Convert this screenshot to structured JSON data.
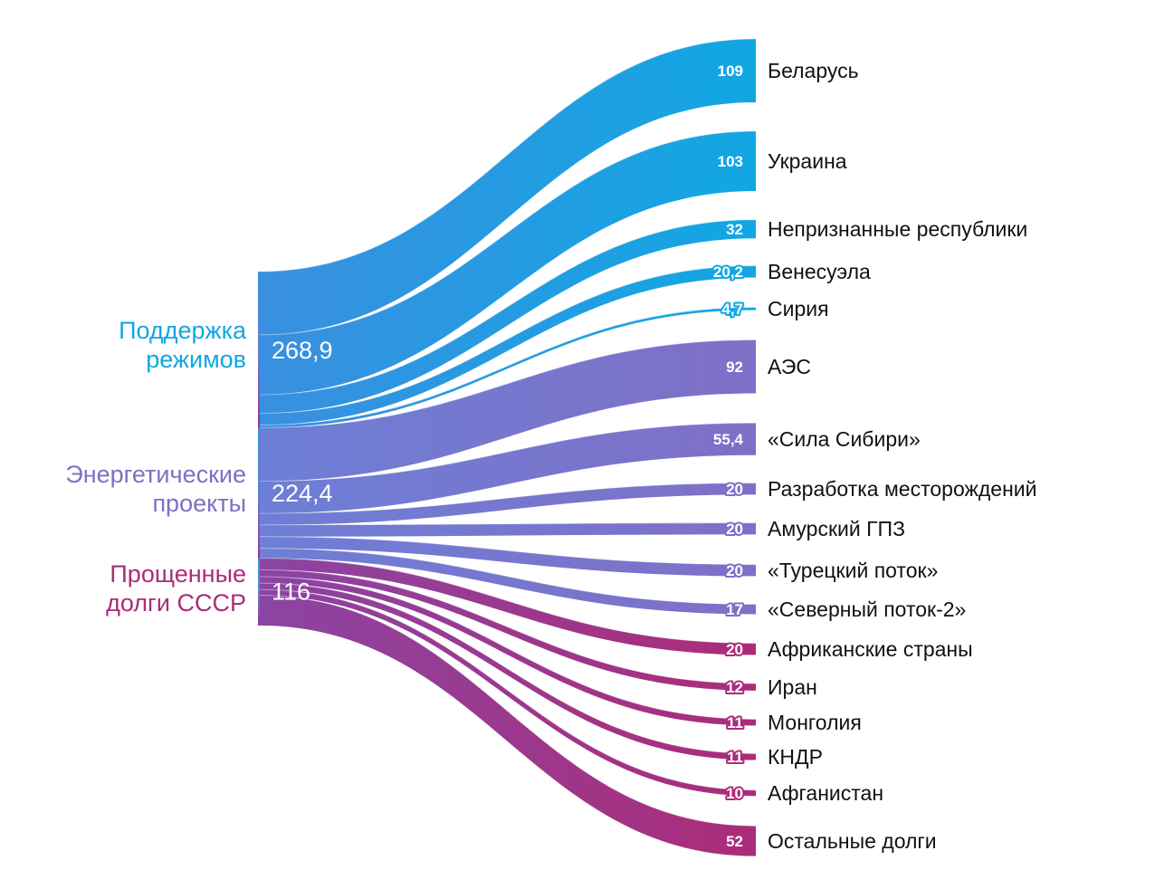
{
  "colors": {
    "support": "#11a7e3",
    "energy": "#7f6fc6",
    "debts": "#ab2c78"
  },
  "chart_data": {
    "type": "sankey",
    "title": "",
    "sources": [
      {
        "name_lines": [
          "Поддержка",
          "режимов"
        ],
        "total": 268.9,
        "total_label": "268,9",
        "color_key": "support"
      },
      {
        "name_lines": [
          "Энергетические",
          "проекты"
        ],
        "total": 224.4,
        "total_label": "224,4",
        "color_key": "energy"
      },
      {
        "name_lines": [
          "Прощенные",
          "долги СССР"
        ],
        "total": 116,
        "total_label": "116",
        "color_key": "debts"
      }
    ],
    "flows": [
      {
        "source": 0,
        "target": "Беларусь",
        "value": 109,
        "value_label": "109"
      },
      {
        "source": 0,
        "target": "Украина",
        "value": 103,
        "value_label": "103"
      },
      {
        "source": 0,
        "target": "Непризнанные республики",
        "value": 32,
        "value_label": "32"
      },
      {
        "source": 0,
        "target": "Венесуэла",
        "value": 20.2,
        "value_label": "20,2"
      },
      {
        "source": 0,
        "target": "Сирия",
        "value": 4.7,
        "value_label": "4,7"
      },
      {
        "source": 1,
        "target": "АЭС",
        "value": 92,
        "value_label": "92"
      },
      {
        "source": 1,
        "target": "«Сила Сибири»",
        "value": 55.4,
        "value_label": "55,4"
      },
      {
        "source": 1,
        "target": "Разработка месторождений",
        "value": 20,
        "value_label": "20"
      },
      {
        "source": 1,
        "target": "Амурский ГПЗ",
        "value": 20,
        "value_label": "20"
      },
      {
        "source": 1,
        "target": "«Турецкий поток»",
        "value": 20,
        "value_label": "20"
      },
      {
        "source": 1,
        "target": "«Северный поток-2»",
        "value": 17,
        "value_label": "17"
      },
      {
        "source": 2,
        "target": "Африканские страны",
        "value": 20,
        "value_label": "20"
      },
      {
        "source": 2,
        "target": "Иран",
        "value": 12,
        "value_label": "12"
      },
      {
        "source": 2,
        "target": "Монголия",
        "value": 11,
        "value_label": "11"
      },
      {
        "source": 2,
        "target": "КНДР",
        "value": 11,
        "value_label": "11"
      },
      {
        "source": 2,
        "target": "Афганистан",
        "value": 10,
        "value_label": "10"
      },
      {
        "source": 2,
        "target": "Остальные долги",
        "value": 52,
        "value_label": "52"
      }
    ]
  }
}
